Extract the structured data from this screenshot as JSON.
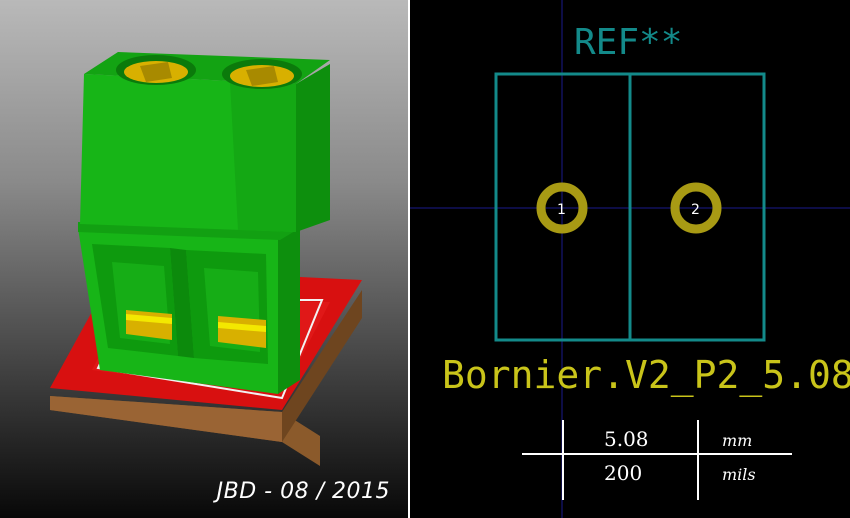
{
  "render": {
    "signature": "JBD - 08 / 2015",
    "colors": {
      "body_green": "#17b517",
      "body_dark_green": "#0d8f0d",
      "base_red": "#d81010",
      "base_wood": "#8b5a2b",
      "metal_yellow": "#d8b000"
    }
  },
  "footprint": {
    "reference": "REF**",
    "value": "Bornier.V2_P2_5.08",
    "pads": [
      {
        "number": "1"
      },
      {
        "number": "2"
      }
    ],
    "colors": {
      "silkscreen": "#138a8a",
      "pad": "#a89a14",
      "value": "#c9c41a",
      "crosshair": "#1a1a8c"
    }
  },
  "conversion_table": {
    "mm_value": "5.08",
    "mm_unit": "mm",
    "mils_value": "200",
    "mils_unit": "mils"
  }
}
